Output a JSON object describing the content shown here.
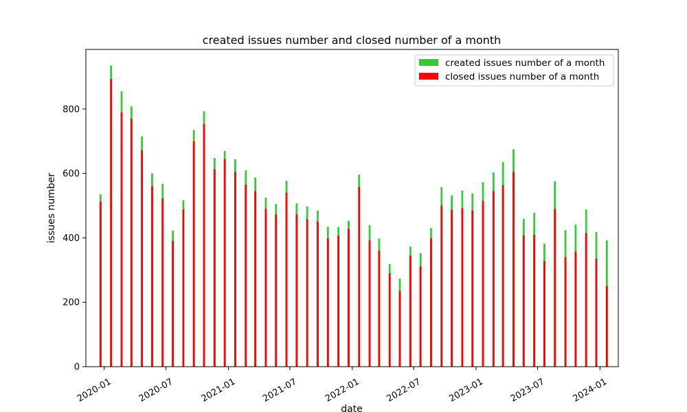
{
  "chart_data": {
    "type": "bar",
    "title": "created issues number and closed number of a month",
    "xlabel": "date",
    "ylabel": "issues number",
    "ylim": [
      0,
      985
    ],
    "yticks": [
      0,
      200,
      400,
      600,
      800
    ],
    "xticks": [
      "2020-01",
      "2020-07",
      "2021-01",
      "2021-07",
      "2022-01",
      "2022-07",
      "2023-01",
      "2023-07",
      "2024-01"
    ],
    "x_range": [
      "2019-11-08",
      "2024-02-24"
    ],
    "legend_position": "top-right",
    "grid": false,
    "x": [
      "2019-12",
      "2020-01",
      "2020-02",
      "2020-03",
      "2020-04",
      "2020-05",
      "2020-06",
      "2020-07",
      "2020-08",
      "2020-09",
      "2020-10",
      "2020-11",
      "2020-12",
      "2021-01",
      "2021-02",
      "2021-03",
      "2021-04",
      "2021-05",
      "2021-06",
      "2021-07",
      "2021-08",
      "2021-09",
      "2021-10",
      "2021-11",
      "2021-12",
      "2022-01",
      "2022-02",
      "2022-03",
      "2022-04",
      "2022-05",
      "2022-06",
      "2022-07",
      "2022-08",
      "2022-09",
      "2022-10",
      "2022-11",
      "2022-12",
      "2023-01",
      "2023-02",
      "2023-03",
      "2023-04",
      "2023-05",
      "2023-06",
      "2023-07",
      "2023-08",
      "2023-09",
      "2023-10",
      "2023-11",
      "2023-12"
    ],
    "series": [
      {
        "name": "created issues number of a month",
        "color": "#33cc33",
        "values": [
          535,
          935,
          855,
          808,
          715,
          600,
          568,
          423,
          517,
          735,
          793,
          648,
          670,
          644,
          610,
          587,
          525,
          505,
          577,
          507,
          498,
          485,
          434,
          434,
          453,
          596,
          440,
          398,
          319,
          273,
          373,
          353,
          430,
          558,
          532,
          547,
          538,
          573,
          603,
          635,
          675,
          459,
          478,
          382,
          576,
          424,
          441,
          488,
          418
        ]
      },
      {
        "name": "closed issues number of a month",
        "color": "#ff0000",
        "values": [
          512,
          893,
          790,
          770,
          672,
          560,
          523,
          390,
          488,
          700,
          753,
          613,
          645,
          605,
          565,
          545,
          490,
          472,
          540,
          473,
          458,
          450,
          398,
          407,
          428,
          558,
          392,
          360,
          290,
          235,
          345,
          312,
          398,
          500,
          487,
          492,
          485,
          515,
          545,
          563,
          605,
          408,
          409,
          328,
          490,
          340,
          357,
          415,
          335
        ]
      }
    ],
    "last_bar": {
      "x": "2024-01",
      "created": 392,
      "closed": 250
    }
  }
}
